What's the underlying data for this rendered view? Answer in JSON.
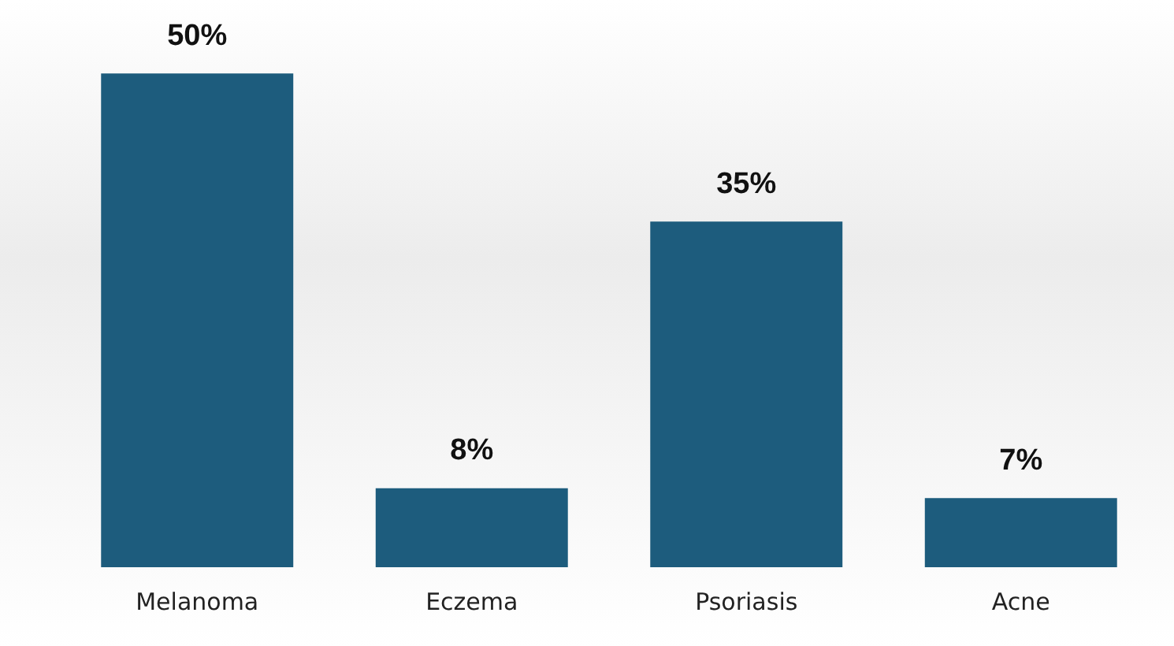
{
  "chart_data": {
    "type": "bar",
    "categories": [
      "Melanoma",
      "Eczema",
      "Psoriasis",
      "Acne"
    ],
    "values": [
      50,
      8,
      35,
      7
    ],
    "value_labels": [
      "50%",
      "8%",
      "35%",
      "7%"
    ],
    "color": "#1d5c7d",
    "grid": false,
    "legend": false,
    "tick_labels": "x"
  }
}
